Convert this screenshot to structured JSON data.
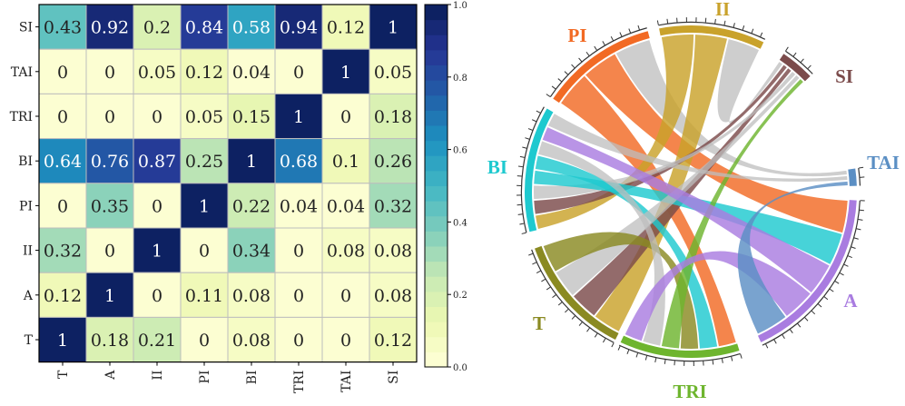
{
  "chart_data": [
    {
      "type": "heatmap",
      "title": "",
      "rows": [
        "SI",
        "TAI",
        "TRI",
        "BI",
        "PI",
        "II",
        "A",
        "T"
      ],
      "columns": [
        "T",
        "A",
        "II",
        "PI",
        "BI",
        "TRI",
        "TAI",
        "SI"
      ],
      "values": [
        [
          0.43,
          0.92,
          0.2,
          0.84,
          0.58,
          0.94,
          0.12,
          1
        ],
        [
          0,
          0,
          0.05,
          0.12,
          0.04,
          0,
          1,
          0.05
        ],
        [
          0,
          0,
          0,
          0.05,
          0.15,
          1,
          0,
          0.18
        ],
        [
          0.64,
          0.76,
          0.87,
          0.25,
          1,
          0.68,
          0.1,
          0.26
        ],
        [
          0,
          0.35,
          0,
          1,
          0.22,
          0.04,
          0.04,
          0.32
        ],
        [
          0.32,
          0,
          1,
          0,
          0.34,
          0,
          0.08,
          0.08
        ],
        [
          0.12,
          1,
          0,
          0.11,
          0.08,
          0,
          0,
          0.08
        ],
        [
          1,
          0.18,
          0.21,
          0,
          0.08,
          0,
          0,
          0.12
        ]
      ],
      "cell_labels": [
        [
          "0.43",
          "0.92",
          "0.2",
          "0.84",
          "0.58",
          "0.94",
          "0.12",
          "1"
        ],
        [
          "0",
          "0",
          "0.05",
          "0.12",
          "0.04",
          "0",
          "1",
          "0.05"
        ],
        [
          "0",
          "0",
          "0",
          "0.05",
          "0.15",
          "1",
          "0",
          "0.18"
        ],
        [
          "0.64",
          "0.76",
          "0.87",
          "0.25",
          "1",
          "0.68",
          "0.1",
          "0.26"
        ],
        [
          "0",
          "0.35",
          "0",
          "1",
          "0.22",
          "0.04",
          "0.04",
          "0.32"
        ],
        [
          "0.32",
          "0",
          "1",
          "0",
          "0.34",
          "0",
          "0.08",
          "0.08"
        ],
        [
          "0.12",
          "1",
          "0",
          "0.11",
          "0.08",
          "0",
          "0",
          "0.08"
        ],
        [
          "1",
          "0.18",
          "0.21",
          "0",
          "0.08",
          "0",
          "0",
          "0.12"
        ]
      ],
      "colorbar": {
        "range": [
          0.0,
          1.0
        ],
        "ticks": [
          "0.0",
          "0.2",
          "0.4",
          "0.6",
          "0.8",
          "1.0"
        ],
        "colormap": "YlGnBu",
        "stops": [
          "#ffffd9",
          "#edf8b1",
          "#c7e9b4",
          "#7fcdbb",
          "#41b6c4",
          "#1d91c0",
          "#225ea8",
          "#253494",
          "#081d58"
        ]
      }
    },
    {
      "type": "chord",
      "title": "",
      "nodes": [
        {
          "name": "SI",
          "color": "#7b4b4b"
        },
        {
          "name": "TAI",
          "color": "#5b8fc4"
        },
        {
          "name": "A",
          "color": "#a97ce0"
        },
        {
          "name": "TRI",
          "color": "#6eb52e"
        },
        {
          "name": "T",
          "color": "#8a8a22"
        },
        {
          "name": "BI",
          "color": "#1ec9cf"
        },
        {
          "name": "PI",
          "color": "#f26a24"
        },
        {
          "name": "II",
          "color": "#c9a22b"
        }
      ],
      "links": [
        {
          "source": "PI",
          "target": "TRI"
        },
        {
          "source": "PI",
          "target": "A"
        },
        {
          "source": "PI",
          "target": "TAI"
        },
        {
          "source": "II",
          "target": "BI"
        },
        {
          "source": "II",
          "target": "T"
        },
        {
          "source": "II",
          "target": "SI"
        },
        {
          "source": "SI",
          "target": "BI"
        },
        {
          "source": "SI",
          "target": "T"
        },
        {
          "source": "BI",
          "target": "SI"
        },
        {
          "source": "BI",
          "target": "A"
        },
        {
          "source": "BI",
          "target": "TRI"
        },
        {
          "source": "T",
          "target": "SI"
        },
        {
          "source": "T",
          "target": "TRI"
        },
        {
          "source": "TRI",
          "target": "SI"
        },
        {
          "source": "TRI",
          "target": "BI"
        },
        {
          "source": "A",
          "target": "BI"
        },
        {
          "source": "A",
          "target": "TRI"
        },
        {
          "source": "TAI",
          "target": "BI"
        },
        {
          "source": "TAI",
          "target": "A"
        }
      ]
    }
  ]
}
